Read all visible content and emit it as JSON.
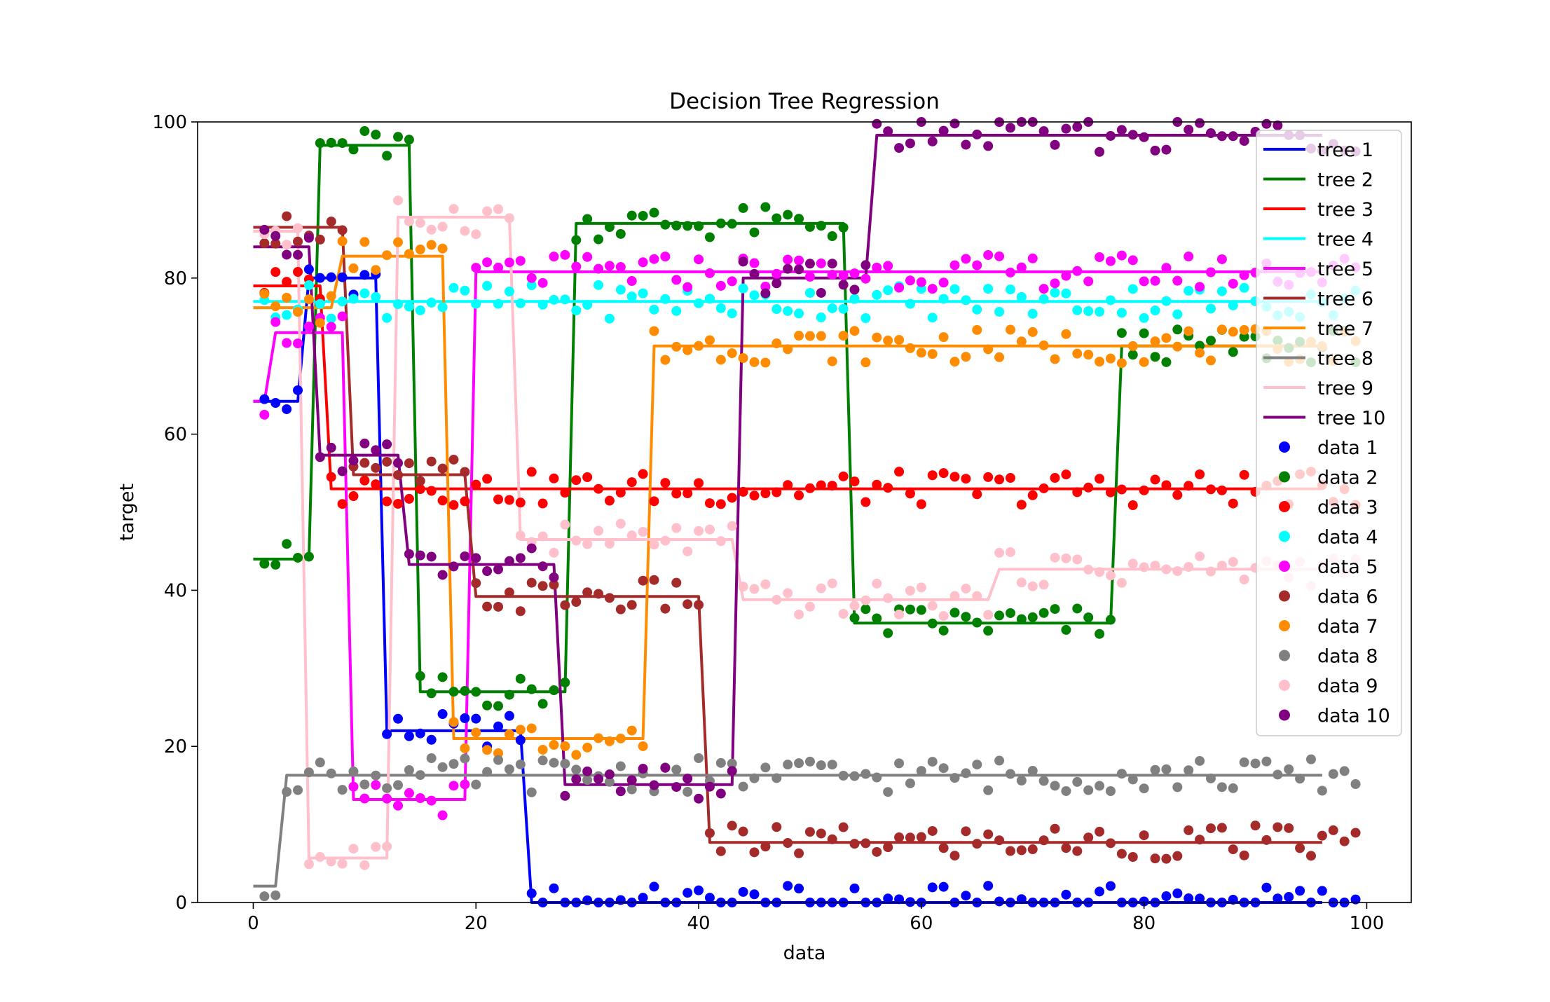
{
  "chart_data": {
    "type": "line",
    "title": "Decision Tree Regression",
    "xlabel": "data",
    "ylabel": "target",
    "xlim": [
      -5,
      104
    ],
    "ylim": [
      0,
      100
    ],
    "xticks": [
      "0",
      "20",
      "40",
      "60",
      "80",
      "100"
    ],
    "yticks": [
      "0",
      "20",
      "40",
      "60",
      "80",
      "100"
    ],
    "grid": false,
    "legend_position": "upper-right",
    "x_range": [
      0,
      99
    ],
    "fit_max_x": 96,
    "series": [
      {
        "name": "tree 1",
        "scatter_name": "data 1",
        "color": "#0000ff",
        "steps": [
          [
            0,
            64.2
          ],
          [
            5,
            80
          ],
          [
            12,
            22
          ],
          [
            25,
            0
          ]
        ]
      },
      {
        "name": "tree 2",
        "scatter_name": "data 2",
        "color": "#008000",
        "steps": [
          [
            0,
            44
          ],
          [
            6,
            97
          ],
          [
            15,
            27
          ],
          [
            29,
            87
          ],
          [
            54,
            35.8
          ],
          [
            78,
            71.3
          ]
        ]
      },
      {
        "name": "tree 3",
        "scatter_name": "data 3",
        "color": "#ff0000",
        "steps": [
          [
            0,
            79
          ],
          [
            7,
            53
          ]
        ]
      },
      {
        "name": "tree 4",
        "scatter_name": "data 4",
        "color": "#00ffff",
        "steps": [
          [
            0,
            77
          ]
        ]
      },
      {
        "name": "tree 5",
        "scatter_name": "data 5",
        "color": "#ff00ff",
        "steps": [
          [
            0,
            64.2
          ],
          [
            2,
            73
          ],
          [
            9,
            13.2
          ],
          [
            20,
            80.8
          ]
        ]
      },
      {
        "name": "tree 6",
        "scatter_name": "data 6",
        "color": "#a52a2a",
        "steps": [
          [
            0,
            86.5
          ],
          [
            9,
            54.8
          ],
          [
            20,
            39.2
          ],
          [
            41,
            7.7
          ]
        ]
      },
      {
        "name": "tree 7",
        "scatter_name": "data 7",
        "color": "#ff8c00",
        "steps": [
          [
            0,
            76.2
          ],
          [
            8,
            82.8
          ],
          [
            18,
            21
          ],
          [
            36,
            71.3
          ]
        ]
      },
      {
        "name": "tree 8",
        "scatter_name": "data 8",
        "color": "#808080",
        "steps": [
          [
            0,
            2.1
          ],
          [
            3,
            16.3
          ]
        ]
      },
      {
        "name": "tree 9",
        "scatter_name": "data 9",
        "color": "#ffc0cb",
        "steps": [
          [
            0,
            86
          ],
          [
            5,
            5.7
          ],
          [
            13,
            87.8
          ],
          [
            24,
            46.5
          ],
          [
            44,
            38.8
          ],
          [
            67,
            42.7
          ]
        ]
      },
      {
        "name": "tree 10",
        "scatter_name": "data 10",
        "color": "#800080",
        "steps": [
          [
            0,
            84
          ],
          [
            6,
            57.3
          ],
          [
            14,
            43.3
          ],
          [
            28,
            15.1
          ],
          [
            44,
            80
          ],
          [
            56,
            98.3
          ]
        ]
      }
    ]
  }
}
